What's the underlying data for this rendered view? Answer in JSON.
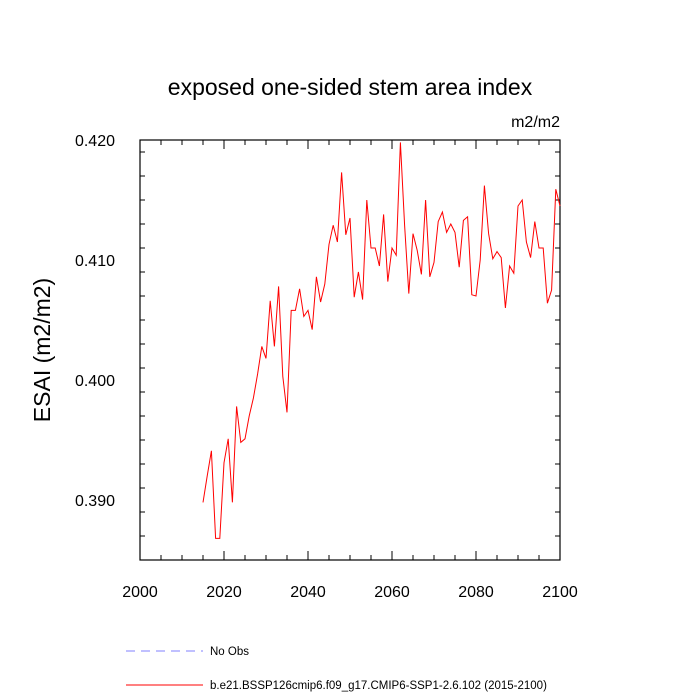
{
  "chart_data": {
    "type": "line",
    "title": "exposed one-sided stem area index",
    "units_label": "m2/m2",
    "ylabel": "ESAI  (m2/m2)",
    "xlabel": "",
    "xlim": [
      2000,
      2100
    ],
    "ylim": [
      0.385,
      0.42
    ],
    "x_ticks": [
      2000,
      2020,
      2040,
      2060,
      2080,
      2100
    ],
    "x_tick_labels": [
      "2000",
      "2020",
      "2040",
      "2060",
      "2080",
      "2100"
    ],
    "y_ticks": [
      0.39,
      0.4,
      0.41,
      0.42
    ],
    "y_tick_labels": [
      "0.390",
      "0.400",
      "0.410",
      "0.420"
    ],
    "x_minor_step": 5,
    "y_minor_step": 0.002,
    "grid": false,
    "legend": [
      {
        "label": "No Obs",
        "color": "#8080ff",
        "style": "dashed"
      },
      {
        "label": "b.e21.BSSP126cmip6.f09_g17.CMIP6-SSP1-2.6.102 (2015-2100)",
        "color": "#ff0000",
        "style": "solid"
      }
    ],
    "series": [
      {
        "name": "b.e21.BSSP126cmip6.f09_g17.CMIP6-SSP1-2.6.102 (2015-2100)",
        "color": "#ff0000",
        "x": [
          2015,
          2016,
          2017,
          2018,
          2019,
          2020,
          2021,
          2022,
          2023,
          2024,
          2025,
          2026,
          2027,
          2028,
          2029,
          2030,
          2031,
          2032,
          2033,
          2034,
          2035,
          2036,
          2037,
          2038,
          2039,
          2040,
          2041,
          2042,
          2043,
          2044,
          2045,
          2046,
          2047,
          2048,
          2049,
          2050,
          2051,
          2052,
          2053,
          2054,
          2055,
          2056,
          2057,
          2058,
          2059,
          2060,
          2061,
          2062,
          2063,
          2064,
          2065,
          2066,
          2067,
          2068,
          2069,
          2070,
          2071,
          2072,
          2073,
          2074,
          2075,
          2076,
          2077,
          2078,
          2079,
          2080,
          2081,
          2082,
          2083,
          2084,
          2085,
          2086,
          2087,
          2088,
          2089,
          2090,
          2091,
          2092,
          2093,
          2094,
          2095,
          2096,
          2097,
          2098,
          2099,
          2100
        ],
        "values": [
          0.3898,
          0.392,
          0.3941,
          0.3868,
          0.3868,
          0.3931,
          0.3951,
          0.3898,
          0.3978,
          0.3948,
          0.3951,
          0.397,
          0.3985,
          0.4005,
          0.4028,
          0.4018,
          0.4066,
          0.4028,
          0.4078,
          0.4003,
          0.3973,
          0.4058,
          0.4058,
          0.4076,
          0.4053,
          0.4058,
          0.4042,
          0.4086,
          0.4065,
          0.408,
          0.4113,
          0.4129,
          0.4115,
          0.4173,
          0.4121,
          0.4135,
          0.4069,
          0.409,
          0.4067,
          0.415,
          0.411,
          0.411,
          0.4095,
          0.4138,
          0.4082,
          0.411,
          0.4104,
          0.4198,
          0.4129,
          0.4072,
          0.4122,
          0.4108,
          0.4088,
          0.415,
          0.4086,
          0.4098,
          0.4132,
          0.414,
          0.4123,
          0.413,
          0.4123,
          0.4094,
          0.4133,
          0.4136,
          0.4071,
          0.407,
          0.41,
          0.4162,
          0.4122,
          0.4101,
          0.4107,
          0.4102,
          0.406,
          0.4095,
          0.4089,
          0.4145,
          0.415,
          0.4115,
          0.4102,
          0.4132,
          0.411,
          0.411,
          0.4064,
          0.4075,
          0.4159,
          0.4145
        ]
      }
    ]
  }
}
